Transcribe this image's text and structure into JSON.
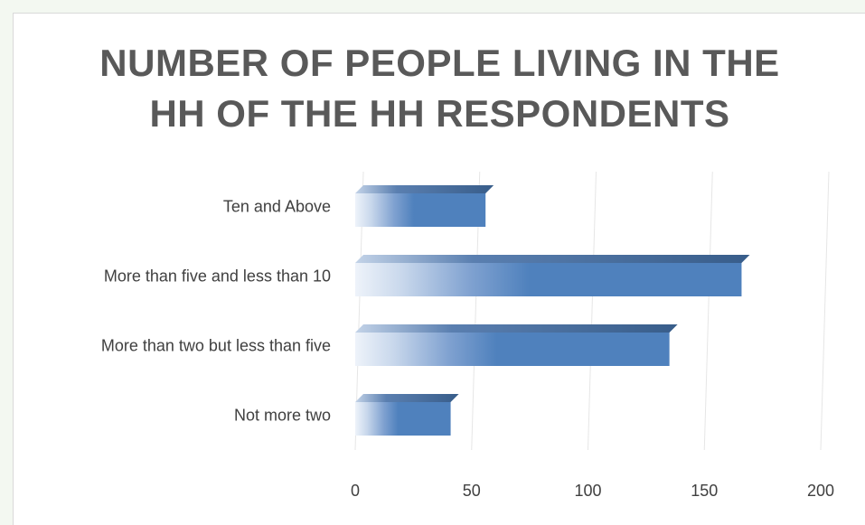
{
  "chart_data": {
    "type": "bar",
    "orientation": "horizontal",
    "title": "NUMBER OF PEOPLE LIVING IN THE\nHH OF THE HH RESPONDENTS",
    "categories": [
      "Not more two",
      "More than two but less than five",
      "More than five and less than 10",
      "Ten and Above"
    ],
    "values": [
      41,
      135,
      166,
      56
    ],
    "xlim": [
      0,
      200
    ],
    "ticks": [
      0,
      50,
      100,
      150,
      200
    ],
    "grid": "vertical",
    "legend": "none",
    "colors": {
      "bar": "#4f81bd",
      "bar_top": "#385d8a",
      "bar_light": "#eef3fa",
      "grid": "#e6e6e6"
    }
  }
}
